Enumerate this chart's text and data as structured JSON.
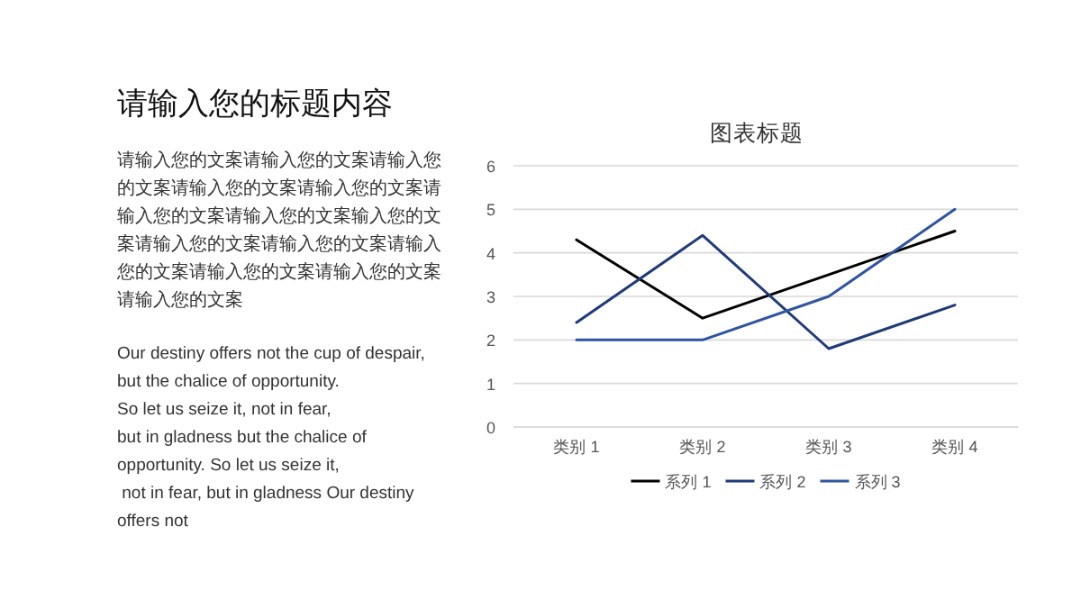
{
  "chart_data": [
    {
      "type": "other",
      "title": "请输入您的标题内容",
      "annotations": [
        "请输入您的文案请输入您的文案请输入您的文案请输入您的文案请输入您的文案请输入您的文案请输入您的文案输入您的文案请输入您的文案请输入您的文案请输入您的文案请输入您的文案请输入您的文案请输入您的文案",
        "Our destiny offers not the cup of despair,\nbut the chalice of opportunity.\nSo let us seize it, not in fear,\nbut in gladness but the chalice of\nopportunity. So let us seize it,\n not in fear, but in gladness Our destiny\noffers not"
      ]
    },
    {
      "type": "line",
      "title": "图表标题",
      "categories": [
        "类别 1",
        "类别 2",
        "类别 3",
        "类别 4"
      ],
      "series": [
        {
          "name": "系列 1",
          "color": "#000000",
          "values": [
            4.3,
            2.5,
            3.5,
            4.5
          ]
        },
        {
          "name": "系列 2",
          "color": "#1f3a78",
          "values": [
            2.4,
            4.4,
            1.8,
            2.8
          ]
        },
        {
          "name": "系列 3",
          "color": "#2f55a0",
          "values": [
            2,
            2,
            3,
            5
          ]
        }
      ],
      "ylim": [
        0,
        6
      ],
      "yticks": [
        0,
        1,
        2,
        3,
        4,
        5,
        6
      ],
      "grid": "y",
      "legend": "bottom"
    }
  ]
}
